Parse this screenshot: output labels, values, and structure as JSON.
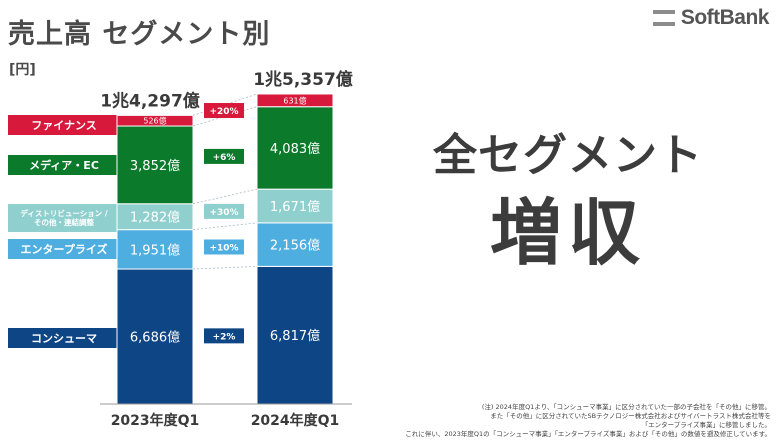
{
  "page": {
    "title": "売上高 セグメント別",
    "unit": "[円]",
    "logo": "SoftBank",
    "headline_line1": "全セグメント",
    "headline_line2": "増収",
    "footnotes": [
      "(注) 2024年度Q1より、「コンシューマ事業」に区分されていた一部の子会社を「その他」に移管。",
      "また「その他」に区分されていたSBテクノロジー株式会社およびサイバートラスト株式会社等を",
      "「エンタープライズ事業」に移管しました。",
      "これに伴い、2023年度Q1の「コンシューマ事業」「エンタープライズ事業」および「その他」の数値を遡及修正しています。"
    ]
  },
  "legend": [
    {
      "label": "ファイナンス",
      "color": "#d7193c"
    },
    {
      "label": "メディア・EC",
      "color": "#0b7a2b"
    },
    {
      "label": "ディストリビューション / その他・連結調整",
      "color": "#8fd0cf"
    },
    {
      "label": "エンタープライズ",
      "color": "#4eaee0"
    },
    {
      "label": "コンシューマ",
      "color": "#0e4585"
    }
  ],
  "chart_data": {
    "type": "bar",
    "stacked": true,
    "categories": [
      "2023年度Q1",
      "2024年度Q1"
    ],
    "totals": [
      "1兆4,297億",
      "1兆5,357億"
    ],
    "unit": "億円",
    "series": [
      {
        "name": "コンシューマ",
        "color": "#0e4585",
        "values": [
          6686,
          6817
        ],
        "labels": [
          "6,686億",
          "6,817億"
        ],
        "growth": "+2%"
      },
      {
        "name": "エンタープライズ",
        "color": "#4eaee0",
        "values": [
          1951,
          2156
        ],
        "labels": [
          "1,951億",
          "2,156億"
        ],
        "growth": "+10%"
      },
      {
        "name": "ディストリビューション / その他・連結調整",
        "color": "#8fd0cf",
        "values": [
          1282,
          1671
        ],
        "labels": [
          "1,282億",
          "1,671億"
        ],
        "growth": "+30%"
      },
      {
        "name": "メディア・EC",
        "color": "#0b7a2b",
        "values": [
          3852,
          4083
        ],
        "labels": [
          "3,852億",
          "4,083億"
        ],
        "growth": "+6%"
      },
      {
        "name": "ファイナンス",
        "color": "#d7193c",
        "values": [
          526,
          631
        ],
        "labels": [
          "526億",
          "631億"
        ],
        "growth": "+20%"
      }
    ]
  }
}
